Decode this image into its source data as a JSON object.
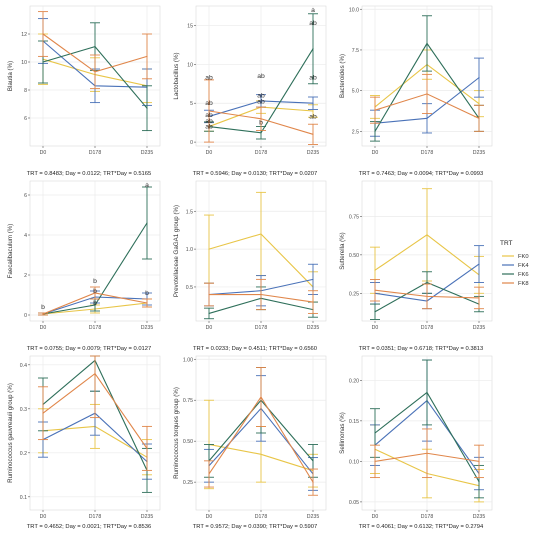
{
  "legend": {
    "title": "TRT",
    "entries": [
      "FK0",
      "FK4",
      "FK6",
      "FK8"
    ],
    "colors": [
      "#E8C547",
      "#4A72B8",
      "#2E6F5A",
      "#E0864A"
    ]
  },
  "chart_data": [
    {
      "type": "line",
      "ylabel": "Blautia (%)",
      "categories": [
        "D0",
        "D178",
        "D235"
      ],
      "ylim": [
        4,
        14
      ],
      "yticks": [
        6,
        8,
        10,
        12
      ],
      "stats": "TRT = 0.8483; Day = 0.0122; TRT*Day = 0.5165",
      "series": [
        {
          "name": "FK0",
          "values": [
            10.2,
            9.1,
            8.3
          ],
          "err": [
            1.8,
            1.2,
            1.2
          ]
        },
        {
          "name": "FK4",
          "values": [
            11.5,
            8.3,
            8.2
          ],
          "err": [
            1.6,
            1.2,
            1.3
          ]
        },
        {
          "name": "FK6",
          "values": [
            10.0,
            11.1,
            6.7
          ],
          "err": [
            1.5,
            1.7,
            1.6
          ]
        },
        {
          "name": "FK8",
          "values": [
            12.0,
            9.3,
            10.4
          ],
          "err": [
            1.6,
            1.2,
            1.6
          ]
        }
      ]
    },
    {
      "type": "line",
      "ylabel": "Lactobacillus (%)",
      "categories": [
        "D0",
        "D178",
        "D235"
      ],
      "ylim": [
        -0.5,
        17.5
      ],
      "yticks": [
        0,
        5,
        10,
        15
      ],
      "stats": "TRT = 0.5946; Day = 0.0130; TRT*Day = 0.0207",
      "series": [
        {
          "name": "FK0",
          "values": [
            2.0,
            4.5,
            4.0
          ],
          "err": [
            0.6,
            0.8,
            0.8
          ]
        },
        {
          "name": "FK4",
          "values": [
            3.3,
            5.3,
            5.0
          ],
          "err": [
            0.8,
            0.8,
            0.8
          ]
        },
        {
          "name": "FK6",
          "values": [
            2.0,
            1.2,
            12.0
          ],
          "err": [
            0.6,
            0.8,
            4.5
          ]
        },
        {
          "name": "FK8",
          "values": [
            4.0,
            3.0,
            1.0
          ],
          "err": [
            4.0,
            1.5,
            1.3
          ]
        }
      ],
      "annotations": [
        {
          "text": "a",
          "x": 2,
          "y": 17.0
        },
        {
          "text": "ab",
          "x": 2,
          "y": 15.3
        },
        {
          "text": "ab",
          "x": 2,
          "y": 8.3
        },
        {
          "text": "ab",
          "x": 2,
          "y": 3.3
        },
        {
          "text": "ab",
          "x": 1,
          "y": 8.5
        },
        {
          "text": "ab",
          "x": 1,
          "y": 6.0
        },
        {
          "text": "ab",
          "x": 1,
          "y": 5.2
        },
        {
          "text": "b",
          "x": 1,
          "y": 2.5
        },
        {
          "text": "ab",
          "x": 0,
          "y": 8.3
        },
        {
          "text": "ab",
          "x": 0,
          "y": 5.0
        },
        {
          "text": "ab",
          "x": 0,
          "y": 3.5
        },
        {
          "text": "ab",
          "x": 0,
          "y": 2.7
        },
        {
          "text": "ab",
          "x": 0,
          "y": 2.0
        }
      ]
    },
    {
      "type": "line",
      "ylabel": "Bacteroides (%)",
      "categories": [
        "D0",
        "D178",
        "D235"
      ],
      "ylim": [
        1.6,
        10.2
      ],
      "yticks": [
        2.5,
        5.0,
        7.5,
        10.0
      ],
      "stats": "TRT = 0.7463; Day = 0.0094; TRT*Day = 0.0993",
      "series": [
        {
          "name": "FK0",
          "values": [
            4.0,
            6.6,
            4.2
          ],
          "err": [
            0.7,
            0.9,
            0.8
          ]
        },
        {
          "name": "FK4",
          "values": [
            3.0,
            3.3,
            5.8
          ],
          "err": [
            0.8,
            0.9,
            1.2
          ]
        },
        {
          "name": "FK6",
          "values": [
            2.5,
            7.9,
            3.3
          ],
          "err": [
            0.6,
            1.7,
            0.8
          ]
        },
        {
          "name": "FK8",
          "values": [
            3.8,
            4.8,
            3.3
          ],
          "err": [
            0.8,
            1.2,
            0.8
          ]
        }
      ]
    },
    {
      "type": "line",
      "ylabel": "Faecalibaculum (%)",
      "categories": [
        "D0",
        "D178",
        "D235"
      ],
      "ylim": [
        -0.3,
        6.7
      ],
      "yticks": [
        0,
        2,
        4,
        6
      ],
      "stats": "TRT = 0.0755; Day = 0.0079; TRT*Day = 0.0127",
      "series": [
        {
          "name": "FK0",
          "values": [
            0.05,
            0.3,
            0.6
          ],
          "err": [
            0.05,
            0.2,
            0.2
          ]
        },
        {
          "name": "FK4",
          "values": [
            0.05,
            0.9,
            0.8
          ],
          "err": [
            0.05,
            0.3,
            0.3
          ]
        },
        {
          "name": "FK6",
          "values": [
            0.05,
            0.5,
            4.6
          ],
          "err": [
            0.05,
            0.3,
            1.8
          ]
        },
        {
          "name": "FK8",
          "values": [
            0.05,
            1.1,
            0.6
          ],
          "err": [
            0.05,
            0.3,
            0.2
          ]
        }
      ],
      "annotations": [
        {
          "text": "a",
          "x": 2,
          "y": 6.5
        },
        {
          "text": "b",
          "x": 1,
          "y": 1.7
        },
        {
          "text": "b",
          "x": 1,
          "y": 1.2
        },
        {
          "text": "b",
          "x": 1,
          "y": 0.6
        },
        {
          "text": "b",
          "x": 2,
          "y": 1.1
        },
        {
          "text": "b",
          "x": 0,
          "y": 0.4
        }
      ]
    },
    {
      "type": "line",
      "ylabel": "Prevotellaceae GaGA1 group (%)",
      "categories": [
        "D0",
        "D178",
        "D235"
      ],
      "ylim": [
        0.05,
        1.9
      ],
      "yticks": [
        0.5,
        1.0,
        1.5
      ],
      "stats": "TRT = 0.0233; Day = 0.4511; TRT*Day = 0.6560",
      "series": [
        {
          "name": "FK0",
          "values": [
            1.0,
            1.2,
            0.5
          ],
          "err": [
            0.45,
            0.55,
            0.2
          ]
        },
        {
          "name": "FK4",
          "values": [
            0.4,
            0.45,
            0.6
          ],
          "err": [
            0.15,
            0.2,
            0.2
          ]
        },
        {
          "name": "FK6",
          "values": [
            0.15,
            0.35,
            0.2
          ],
          "err": [
            0.07,
            0.15,
            0.1
          ]
        },
        {
          "name": "FK8",
          "values": [
            0.4,
            0.4,
            0.3
          ],
          "err": [
            0.15,
            0.2,
            0.15
          ]
        }
      ]
    },
    {
      "type": "line",
      "ylabel": "Sutterella (%)",
      "categories": [
        "D0",
        "D178",
        "D235"
      ],
      "ylim": [
        0.07,
        0.98
      ],
      "yticks": [
        0.25,
        0.5,
        0.75
      ],
      "stats": "TRT = 0.0351; Day = 0.6718; TRT*Day = 0.3813",
      "series": [
        {
          "name": "FK0",
          "values": [
            0.4,
            0.63,
            0.37
          ],
          "err": [
            0.15,
            0.3,
            0.12
          ]
        },
        {
          "name": "FK4",
          "values": [
            0.25,
            0.2,
            0.44
          ],
          "err": [
            0.07,
            0.05,
            0.12
          ]
        },
        {
          "name": "FK6",
          "values": [
            0.13,
            0.32,
            0.18
          ],
          "err": [
            0.05,
            0.07,
            0.05
          ]
        },
        {
          "name": "FK8",
          "values": [
            0.27,
            0.23,
            0.22
          ],
          "err": [
            0.07,
            0.08,
            0.07
          ]
        }
      ]
    },
    {
      "type": "line",
      "ylabel": "Ruminococcus gauvreauii group (%)",
      "categories": [
        "D0",
        "D178",
        "D235"
      ],
      "ylim": [
        0.07,
        0.42
      ],
      "yticks": [
        0.1,
        0.2,
        0.3,
        0.4
      ],
      "stats": "TRT = 0.4652; Day = 0.0021; TRT*Day = 0.8536",
      "series": [
        {
          "name": "FK0",
          "values": [
            0.25,
            0.26,
            0.19
          ],
          "err": [
            0.05,
            0.05,
            0.04
          ]
        },
        {
          "name": "FK4",
          "values": [
            0.23,
            0.29,
            0.18
          ],
          "err": [
            0.04,
            0.05,
            0.04
          ]
        },
        {
          "name": "FK6",
          "values": [
            0.31,
            0.41,
            0.16
          ],
          "err": [
            0.06,
            0.07,
            0.05
          ]
        },
        {
          "name": "FK8",
          "values": [
            0.29,
            0.38,
            0.21
          ],
          "err": [
            0.06,
            0.1,
            0.05
          ]
        }
      ]
    },
    {
      "type": "line",
      "ylabel": "Ruminococcus torques group (%)",
      "categories": [
        "D0",
        "D178",
        "D235"
      ],
      "ylim": [
        0.08,
        1.02
      ],
      "yticks": [
        0.25,
        0.5,
        0.75,
        1.0
      ],
      "stats": "TRT = 0.9572; Day = 0.0390; TRT*Day = 0.5907",
      "series": [
        {
          "name": "FK0",
          "values": [
            0.48,
            0.42,
            0.32
          ],
          "err": [
            0.27,
            0.17,
            0.1
          ]
        },
        {
          "name": "FK4",
          "values": [
            0.35,
            0.7,
            0.3
          ],
          "err": [
            0.1,
            0.2,
            0.1
          ]
        },
        {
          "name": "FK6",
          "values": [
            0.38,
            0.75,
            0.38
          ],
          "err": [
            0.1,
            0.2,
            0.1
          ]
        },
        {
          "name": "FK8",
          "values": [
            0.3,
            0.77,
            0.25
          ],
          "err": [
            0.08,
            0.18,
            0.08
          ]
        }
      ]
    },
    {
      "type": "line",
      "ylabel": "Sellimonas (%)",
      "categories": [
        "D0",
        "D178",
        "D235"
      ],
      "ylim": [
        0.04,
        0.23
      ],
      "yticks": [
        0.05,
        0.1,
        0.15,
        0.2
      ],
      "stats": "TRT = 0.4061; Day = 0.6132; TRT*Day = 0.2794",
      "series": [
        {
          "name": "FK0",
          "values": [
            0.115,
            0.085,
            0.07
          ],
          "err": [
            0.03,
            0.03,
            0.02
          ]
        },
        {
          "name": "FK4",
          "values": [
            0.12,
            0.175,
            0.085
          ],
          "err": [
            0.025,
            0.05,
            0.02
          ]
        },
        {
          "name": "FK6",
          "values": [
            0.135,
            0.185,
            0.075
          ],
          "err": [
            0.03,
            0.04,
            0.02
          ]
        },
        {
          "name": "FK8",
          "values": [
            0.1,
            0.11,
            0.1
          ],
          "err": [
            0.02,
            0.03,
            0.02
          ]
        }
      ]
    }
  ]
}
